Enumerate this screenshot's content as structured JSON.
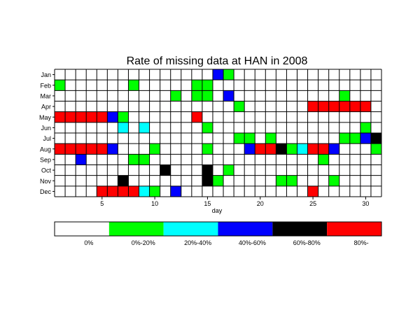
{
  "chart_data": {
    "type": "heatmap",
    "title": "Rate of missing data at HAN in 2008",
    "xlabel": "day",
    "ylabel": "",
    "x_ticks": [
      5,
      10,
      15,
      20,
      25,
      30
    ],
    "x_range": [
      1,
      31
    ],
    "months": [
      "Jan",
      "Feb",
      "Mar",
      "Apr",
      "May",
      "Jun",
      "Jul",
      "Aug",
      "Sep",
      "Oct",
      "Nov",
      "Dec"
    ],
    "colors": [
      "#ffffff",
      "#00ff00",
      "#00ffff",
      "#0000ff",
      "#000000",
      "#ff0000"
    ],
    "legend_labels": [
      "0%",
      "0%-20%",
      "20%-40%",
      "40%-60%",
      "60%-80%",
      "80%-"
    ],
    "cells": [
      {
        "month": "Jan",
        "day": 16,
        "category": 3
      },
      {
        "month": "Jan",
        "day": 17,
        "category": 1
      },
      {
        "month": "Feb",
        "day": 1,
        "category": 1
      },
      {
        "month": "Feb",
        "day": 8,
        "category": 1
      },
      {
        "month": "Feb",
        "day": 14,
        "category": 1
      },
      {
        "month": "Feb",
        "day": 15,
        "category": 1
      },
      {
        "month": "Mar",
        "day": 12,
        "category": 1
      },
      {
        "month": "Mar",
        "day": 14,
        "category": 1
      },
      {
        "month": "Mar",
        "day": 15,
        "category": 1
      },
      {
        "month": "Mar",
        "day": 17,
        "category": 3
      },
      {
        "month": "Mar",
        "day": 28,
        "category": 1
      },
      {
        "month": "Apr",
        "day": 18,
        "category": 1
      },
      {
        "month": "Apr",
        "day": 25,
        "category": 5
      },
      {
        "month": "Apr",
        "day": 26,
        "category": 5
      },
      {
        "month": "Apr",
        "day": 27,
        "category": 5
      },
      {
        "month": "Apr",
        "day": 28,
        "category": 5
      },
      {
        "month": "Apr",
        "day": 29,
        "category": 5
      },
      {
        "month": "Apr",
        "day": 30,
        "category": 5
      },
      {
        "month": "May",
        "day": 1,
        "category": 5
      },
      {
        "month": "May",
        "day": 2,
        "category": 5
      },
      {
        "month": "May",
        "day": 3,
        "category": 5
      },
      {
        "month": "May",
        "day": 4,
        "category": 5
      },
      {
        "month": "May",
        "day": 5,
        "category": 5
      },
      {
        "month": "May",
        "day": 6,
        "category": 3
      },
      {
        "month": "May",
        "day": 7,
        "category": 1
      },
      {
        "month": "May",
        "day": 14,
        "category": 5
      },
      {
        "month": "Jun",
        "day": 7,
        "category": 2
      },
      {
        "month": "Jun",
        "day": 9,
        "category": 2
      },
      {
        "month": "Jun",
        "day": 15,
        "category": 1
      },
      {
        "month": "Jun",
        "day": 30,
        "category": 1
      },
      {
        "month": "Jul",
        "day": 18,
        "category": 1
      },
      {
        "month": "Jul",
        "day": 19,
        "category": 1
      },
      {
        "month": "Jul",
        "day": 21,
        "category": 1
      },
      {
        "month": "Jul",
        "day": 28,
        "category": 1
      },
      {
        "month": "Jul",
        "day": 29,
        "category": 1
      },
      {
        "month": "Jul",
        "day": 30,
        "category": 3
      },
      {
        "month": "Jul",
        "day": 31,
        "category": 4
      },
      {
        "month": "Aug",
        "day": 1,
        "category": 5
      },
      {
        "month": "Aug",
        "day": 2,
        "category": 5
      },
      {
        "month": "Aug",
        "day": 3,
        "category": 5
      },
      {
        "month": "Aug",
        "day": 4,
        "category": 5
      },
      {
        "month": "Aug",
        "day": 5,
        "category": 5
      },
      {
        "month": "Aug",
        "day": 6,
        "category": 3
      },
      {
        "month": "Aug",
        "day": 10,
        "category": 1
      },
      {
        "month": "Aug",
        "day": 15,
        "category": 1
      },
      {
        "month": "Aug",
        "day": 19,
        "category": 3
      },
      {
        "month": "Aug",
        "day": 20,
        "category": 5
      },
      {
        "month": "Aug",
        "day": 21,
        "category": 5
      },
      {
        "month": "Aug",
        "day": 22,
        "category": 4
      },
      {
        "month": "Aug",
        "day": 23,
        "category": 1
      },
      {
        "month": "Aug",
        "day": 24,
        "category": 2
      },
      {
        "month": "Aug",
        "day": 25,
        "category": 5
      },
      {
        "month": "Aug",
        "day": 26,
        "category": 5
      },
      {
        "month": "Aug",
        "day": 27,
        "category": 3
      },
      {
        "month": "Aug",
        "day": 31,
        "category": 1
      },
      {
        "month": "Sep",
        "day": 3,
        "category": 3
      },
      {
        "month": "Sep",
        "day": 8,
        "category": 1
      },
      {
        "month": "Sep",
        "day": 9,
        "category": 1
      },
      {
        "month": "Sep",
        "day": 26,
        "category": 1
      },
      {
        "month": "Oct",
        "day": 11,
        "category": 4
      },
      {
        "month": "Oct",
        "day": 15,
        "category": 4
      },
      {
        "month": "Oct",
        "day": 17,
        "category": 1
      },
      {
        "month": "Nov",
        "day": 7,
        "category": 4
      },
      {
        "month": "Nov",
        "day": 15,
        "category": 4
      },
      {
        "month": "Nov",
        "day": 16,
        "category": 1
      },
      {
        "month": "Nov",
        "day": 22,
        "category": 1
      },
      {
        "month": "Nov",
        "day": 23,
        "category": 1
      },
      {
        "month": "Nov",
        "day": 27,
        "category": 1
      },
      {
        "month": "Dec",
        "day": 5,
        "category": 5
      },
      {
        "month": "Dec",
        "day": 6,
        "category": 5
      },
      {
        "month": "Dec",
        "day": 7,
        "category": 5
      },
      {
        "month": "Dec",
        "day": 8,
        "category": 5
      },
      {
        "month": "Dec",
        "day": 9,
        "category": 2
      },
      {
        "month": "Dec",
        "day": 10,
        "category": 1
      },
      {
        "month": "Dec",
        "day": 12,
        "category": 3
      },
      {
        "month": "Dec",
        "day": 25,
        "category": 5
      }
    ]
  }
}
